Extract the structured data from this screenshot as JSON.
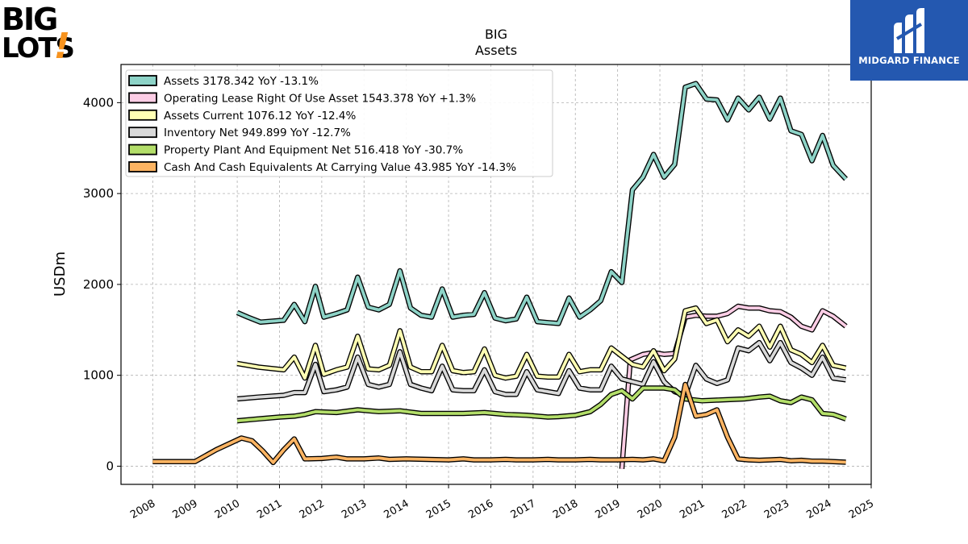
{
  "brand": {
    "left_logo_line1": "BIG",
    "left_logo_line2": "LOTS",
    "left_logo_mark": "!",
    "right_logo_text": "MIDGARD FINANCE",
    "right_logo_icon": "midgard-m-icon",
    "colors": {
      "bigLotsOrange": "#f7931e",
      "midgardBlue": "#2458b0"
    }
  },
  "chart_data": {
    "type": "line",
    "title": "BIG",
    "subtitle": "Assets",
    "xlabel": "",
    "ylabel": "USDm",
    "xlim": [
      2007.25,
      2025.0
    ],
    "ylim": [
      -200,
      4420
    ],
    "xticks": [
      "2008",
      "2009",
      "2010",
      "2011",
      "2012",
      "2013",
      "2014",
      "2015",
      "2016",
      "2017",
      "2018",
      "2019",
      "2020",
      "2021",
      "2022",
      "2023",
      "2024",
      "2025"
    ],
    "yticks": [
      "0",
      "1000",
      "2000",
      "3000",
      "4000"
    ],
    "grid": true,
    "legend_position": "top-left",
    "series": [
      {
        "name": "Assets",
        "legend": "Assets  3178.342 YoY -13.1%",
        "color": "#8dd3c7",
        "points": [
          [
            2010.0,
            1690
          ],
          [
            2010.25,
            1640
          ],
          [
            2010.55,
            1585
          ],
          [
            2011.1,
            1605
          ],
          [
            2011.35,
            1780
          ],
          [
            2011.6,
            1590
          ],
          [
            2011.85,
            1980
          ],
          [
            2012.05,
            1640
          ],
          [
            2012.35,
            1680
          ],
          [
            2012.6,
            1720
          ],
          [
            2012.85,
            2080
          ],
          [
            2013.1,
            1750
          ],
          [
            2013.35,
            1720
          ],
          [
            2013.6,
            1780
          ],
          [
            2013.85,
            2150
          ],
          [
            2014.1,
            1740
          ],
          [
            2014.35,
            1660
          ],
          [
            2014.6,
            1640
          ],
          [
            2014.85,
            1950
          ],
          [
            2015.1,
            1640
          ],
          [
            2015.35,
            1660
          ],
          [
            2015.6,
            1670
          ],
          [
            2015.85,
            1910
          ],
          [
            2016.1,
            1630
          ],
          [
            2016.35,
            1600
          ],
          [
            2016.6,
            1620
          ],
          [
            2016.85,
            1860
          ],
          [
            2017.1,
            1590
          ],
          [
            2017.35,
            1580
          ],
          [
            2017.6,
            1570
          ],
          [
            2017.85,
            1850
          ],
          [
            2018.1,
            1640
          ],
          [
            2018.35,
            1720
          ],
          [
            2018.6,
            1820
          ],
          [
            2018.85,
            2140
          ],
          [
            2019.1,
            2020
          ],
          [
            2019.35,
            3040
          ],
          [
            2019.6,
            3180
          ],
          [
            2019.85,
            3430
          ],
          [
            2020.1,
            3180
          ],
          [
            2020.35,
            3320
          ],
          [
            2020.6,
            4170
          ],
          [
            2020.85,
            4210
          ],
          [
            2021.1,
            4040
          ],
          [
            2021.35,
            4030
          ],
          [
            2021.6,
            3810
          ],
          [
            2021.85,
            4050
          ],
          [
            2022.1,
            3920
          ],
          [
            2022.35,
            4060
          ],
          [
            2022.6,
            3820
          ],
          [
            2022.85,
            4050
          ],
          [
            2023.1,
            3690
          ],
          [
            2023.35,
            3650
          ],
          [
            2023.6,
            3360
          ],
          [
            2023.85,
            3640
          ],
          [
            2024.1,
            3310
          ],
          [
            2024.4,
            3160
          ]
        ]
      },
      {
        "name": "Operating Lease Right Of Use Asset",
        "legend": "Operating Lease Right Of Use Asset  1543.378 YoY +1.3%",
        "color": "#fccde5",
        "points": [
          [
            2019.1,
            -30
          ],
          [
            2019.3,
            1170
          ],
          [
            2019.6,
            1230
          ],
          [
            2019.85,
            1250
          ],
          [
            2020.1,
            1230
          ],
          [
            2020.35,
            1240
          ],
          [
            2020.6,
            1640
          ],
          [
            2020.85,
            1660
          ],
          [
            2021.1,
            1650
          ],
          [
            2021.35,
            1650
          ],
          [
            2021.6,
            1680
          ],
          [
            2021.85,
            1760
          ],
          [
            2022.1,
            1740
          ],
          [
            2022.35,
            1740
          ],
          [
            2022.6,
            1710
          ],
          [
            2022.85,
            1700
          ],
          [
            2023.1,
            1640
          ],
          [
            2023.35,
            1540
          ],
          [
            2023.6,
            1500
          ],
          [
            2023.85,
            1710
          ],
          [
            2024.1,
            1650
          ],
          [
            2024.4,
            1540
          ]
        ]
      },
      {
        "name": "Assets Current",
        "legend": "Assets Current  1076.12 YoY -12.4%",
        "color": "#ffffb3",
        "points": [
          [
            2010.0,
            1130
          ],
          [
            2010.5,
            1090
          ],
          [
            2011.1,
            1060
          ],
          [
            2011.35,
            1200
          ],
          [
            2011.6,
            970
          ],
          [
            2011.85,
            1330
          ],
          [
            2012.05,
            1010
          ],
          [
            2012.35,
            1060
          ],
          [
            2012.6,
            1090
          ],
          [
            2012.85,
            1430
          ],
          [
            2013.1,
            1070
          ],
          [
            2013.35,
            1060
          ],
          [
            2013.6,
            1110
          ],
          [
            2013.85,
            1490
          ],
          [
            2014.1,
            1090
          ],
          [
            2014.35,
            1040
          ],
          [
            2014.6,
            1040
          ],
          [
            2014.85,
            1330
          ],
          [
            2015.1,
            1050
          ],
          [
            2015.35,
            1030
          ],
          [
            2015.6,
            1040
          ],
          [
            2015.85,
            1290
          ],
          [
            2016.1,
            1000
          ],
          [
            2016.35,
            970
          ],
          [
            2016.6,
            990
          ],
          [
            2016.85,
            1230
          ],
          [
            2017.1,
            990
          ],
          [
            2017.35,
            980
          ],
          [
            2017.6,
            980
          ],
          [
            2017.85,
            1230
          ],
          [
            2018.1,
            1040
          ],
          [
            2018.35,
            1060
          ],
          [
            2018.6,
            1060
          ],
          [
            2018.85,
            1300
          ],
          [
            2019.1,
            1210
          ],
          [
            2019.35,
            1120
          ],
          [
            2019.6,
            1090
          ],
          [
            2019.85,
            1270
          ],
          [
            2020.1,
            1050
          ],
          [
            2020.35,
            1180
          ],
          [
            2020.6,
            1710
          ],
          [
            2020.85,
            1740
          ],
          [
            2021.1,
            1570
          ],
          [
            2021.35,
            1610
          ],
          [
            2021.6,
            1370
          ],
          [
            2021.85,
            1500
          ],
          [
            2022.1,
            1430
          ],
          [
            2022.35,
            1540
          ],
          [
            2022.6,
            1310
          ],
          [
            2022.85,
            1540
          ],
          [
            2023.1,
            1280
          ],
          [
            2023.35,
            1230
          ],
          [
            2023.6,
            1140
          ],
          [
            2023.85,
            1330
          ],
          [
            2024.1,
            1110
          ],
          [
            2024.4,
            1080
          ]
        ]
      },
      {
        "name": "Inventory Net",
        "legend": "Inventory Net  949.899 YoY -12.7%",
        "color": "#d9d9d9",
        "points": [
          [
            2010.0,
            740
          ],
          [
            2010.5,
            760
          ],
          [
            2011.1,
            780
          ],
          [
            2011.35,
            810
          ],
          [
            2011.6,
            810
          ],
          [
            2011.85,
            1120
          ],
          [
            2012.05,
            820
          ],
          [
            2012.35,
            840
          ],
          [
            2012.6,
            870
          ],
          [
            2012.85,
            1200
          ],
          [
            2013.1,
            900
          ],
          [
            2013.35,
            870
          ],
          [
            2013.6,
            900
          ],
          [
            2013.85,
            1260
          ],
          [
            2014.1,
            900
          ],
          [
            2014.35,
            860
          ],
          [
            2014.6,
            830
          ],
          [
            2014.85,
            1100
          ],
          [
            2015.1,
            840
          ],
          [
            2015.35,
            830
          ],
          [
            2015.6,
            830
          ],
          [
            2015.85,
            1060
          ],
          [
            2016.1,
            820
          ],
          [
            2016.35,
            790
          ],
          [
            2016.6,
            790
          ],
          [
            2016.85,
            1040
          ],
          [
            2017.1,
            840
          ],
          [
            2017.35,
            820
          ],
          [
            2017.6,
            800
          ],
          [
            2017.85,
            1050
          ],
          [
            2018.1,
            860
          ],
          [
            2018.35,
            840
          ],
          [
            2018.6,
            840
          ],
          [
            2018.85,
            1100
          ],
          [
            2019.1,
            960
          ],
          [
            2019.35,
            930
          ],
          [
            2019.6,
            900
          ],
          [
            2019.85,
            1150
          ],
          [
            2020.1,
            930
          ],
          [
            2020.35,
            820
          ],
          [
            2020.6,
            780
          ],
          [
            2020.85,
            1110
          ],
          [
            2021.1,
            960
          ],
          [
            2021.35,
            910
          ],
          [
            2021.6,
            950
          ],
          [
            2021.85,
            1300
          ],
          [
            2022.1,
            1270
          ],
          [
            2022.35,
            1360
          ],
          [
            2022.6,
            1160
          ],
          [
            2022.85,
            1360
          ],
          [
            2023.1,
            1140
          ],
          [
            2023.35,
            1080
          ],
          [
            2023.6,
            1000
          ],
          [
            2023.85,
            1200
          ],
          [
            2024.1,
            970
          ],
          [
            2024.4,
            950
          ]
        ]
      },
      {
        "name": "Property Plant And Equipment Net",
        "legend": "Property Plant And Equipment Net  516.418 YoY -30.7%",
        "color": "#b3de69",
        "points": [
          [
            2010.0,
            500
          ],
          [
            2010.5,
            520
          ],
          [
            2011.0,
            540
          ],
          [
            2011.35,
            550
          ],
          [
            2011.6,
            570
          ],
          [
            2011.85,
            600
          ],
          [
            2012.35,
            590
          ],
          [
            2012.85,
            620
          ],
          [
            2013.35,
            600
          ],
          [
            2013.85,
            610
          ],
          [
            2014.35,
            580
          ],
          [
            2014.85,
            580
          ],
          [
            2015.35,
            580
          ],
          [
            2015.85,
            590
          ],
          [
            2016.35,
            570
          ],
          [
            2016.85,
            560
          ],
          [
            2017.35,
            540
          ],
          [
            2017.6,
            545
          ],
          [
            2018.0,
            560
          ],
          [
            2018.35,
            600
          ],
          [
            2018.6,
            680
          ],
          [
            2018.85,
            790
          ],
          [
            2019.1,
            830
          ],
          [
            2019.35,
            740
          ],
          [
            2019.6,
            860
          ],
          [
            2019.85,
            860
          ],
          [
            2020.1,
            860
          ],
          [
            2020.35,
            840
          ],
          [
            2020.6,
            740
          ],
          [
            2021.0,
            720
          ],
          [
            2021.5,
            730
          ],
          [
            2022.0,
            740
          ],
          [
            2022.35,
            760
          ],
          [
            2022.6,
            770
          ],
          [
            2022.85,
            720
          ],
          [
            2023.1,
            700
          ],
          [
            2023.35,
            760
          ],
          [
            2023.6,
            730
          ],
          [
            2023.85,
            580
          ],
          [
            2024.1,
            570
          ],
          [
            2024.4,
            520
          ]
        ]
      },
      {
        "name": "Cash And Cash Equivalents At Carrying Value",
        "legend": "Cash And Cash Equivalents At Carrying Value  43.985 YoY -14.3%",
        "color": "#fdb462",
        "points": [
          [
            2008.0,
            50
          ],
          [
            2009.0,
            50
          ],
          [
            2009.5,
            180
          ],
          [
            2010.1,
            310
          ],
          [
            2010.35,
            280
          ],
          [
            2010.6,
            170
          ],
          [
            2010.85,
            40
          ],
          [
            2011.1,
            180
          ],
          [
            2011.35,
            300
          ],
          [
            2011.6,
            80
          ],
          [
            2012.0,
            85
          ],
          [
            2012.35,
            100
          ],
          [
            2012.6,
            80
          ],
          [
            2013.0,
            80
          ],
          [
            2013.35,
            90
          ],
          [
            2013.6,
            75
          ],
          [
            2014.0,
            80
          ],
          [
            2014.5,
            75
          ],
          [
            2015.0,
            70
          ],
          [
            2015.35,
            80
          ],
          [
            2015.6,
            70
          ],
          [
            2016.0,
            70
          ],
          [
            2016.35,
            75
          ],
          [
            2016.6,
            70
          ],
          [
            2017.0,
            70
          ],
          [
            2017.35,
            75
          ],
          [
            2017.6,
            70
          ],
          [
            2018.0,
            70
          ],
          [
            2018.35,
            75
          ],
          [
            2018.6,
            70
          ],
          [
            2019.0,
            70
          ],
          [
            2019.35,
            75
          ],
          [
            2019.6,
            70
          ],
          [
            2019.85,
            80
          ],
          [
            2020.1,
            60
          ],
          [
            2020.35,
            320
          ],
          [
            2020.6,
            900
          ],
          [
            2020.85,
            550
          ],
          [
            2021.1,
            570
          ],
          [
            2021.35,
            620
          ],
          [
            2021.6,
            320
          ],
          [
            2021.85,
            80
          ],
          [
            2022.1,
            70
          ],
          [
            2022.35,
            65
          ],
          [
            2022.6,
            70
          ],
          [
            2022.85,
            75
          ],
          [
            2023.1,
            60
          ],
          [
            2023.35,
            65
          ],
          [
            2023.6,
            55
          ],
          [
            2023.85,
            55
          ],
          [
            2024.1,
            50
          ],
          [
            2024.4,
            44
          ]
        ]
      }
    ]
  }
}
